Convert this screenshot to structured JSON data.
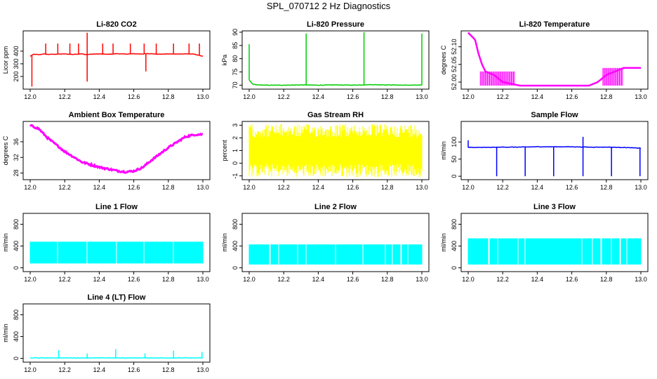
{
  "figure": {
    "title": "SPL_070712  2 Hz Diagnostics"
  },
  "colors": {
    "red": "#ff0000",
    "green": "#00cd00",
    "magenta": "#ff00ff",
    "yellow": "#ffff00",
    "blue": "#0000ff",
    "cyan": "#00ffff"
  },
  "chart_data": [
    {
      "type": "line",
      "title": "Li-820 CO2",
      "ylabel": "Licor ppm",
      "xlabel": "",
      "xlim": [
        12.0,
        13.0
      ],
      "ylim": [
        100,
        560
      ],
      "xticks": [
        "12.0",
        "12.2",
        "12.4",
        "12.6",
        "12.8",
        "13.0"
      ],
      "yticks": [
        200,
        300,
        400
      ],
      "color": "#ff0000",
      "series": [
        {
          "x": [
            12.0,
            12.02,
            12.05,
            12.08,
            12.1,
            12.15,
            12.2,
            12.25,
            12.3,
            12.32,
            12.35,
            12.4,
            12.45,
            12.5,
            12.55,
            12.6,
            12.65,
            12.7,
            12.75,
            12.8,
            12.85,
            12.9,
            12.95,
            13.0
          ],
          "values": [
            360,
            375,
            372,
            378,
            374,
            376,
            378,
            374,
            380,
            372,
            376,
            378,
            375,
            380,
            377,
            379,
            378,
            380,
            376,
            378,
            377,
            379,
            376,
            360
          ]
        }
      ],
      "spikes": [
        {
          "x": 12.01,
          "y": 120
        },
        {
          "x": 12.33,
          "y": 160
        },
        {
          "x": 12.33,
          "y": 545
        },
        {
          "x": 12.67,
          "y": 240
        },
        {
          "x": 12.09,
          "y": 460
        },
        {
          "x": 12.16,
          "y": 460
        },
        {
          "x": 12.23,
          "y": 460
        },
        {
          "x": 12.28,
          "y": 460
        },
        {
          "x": 12.42,
          "y": 460
        },
        {
          "x": 12.48,
          "y": 460
        },
        {
          "x": 12.58,
          "y": 460
        },
        {
          "x": 12.66,
          "y": 460
        },
        {
          "x": 12.73,
          "y": 460
        },
        {
          "x": 12.83,
          "y": 460
        },
        {
          "x": 12.92,
          "y": 460
        },
        {
          "x": 12.98,
          "y": 460
        }
      ]
    },
    {
      "type": "line",
      "title": "Li-820 Pressure",
      "ylabel": "kPa",
      "xlabel": "",
      "xlim": [
        12.0,
        13.0
      ],
      "ylim": [
        68.5,
        90.5
      ],
      "xticks": [
        "12.0",
        "12.2",
        "12.4",
        "12.6",
        "12.8",
        "13.0"
      ],
      "yticks": [
        70,
        75,
        80,
        85,
        90
      ],
      "color": "#00cd00",
      "series": [
        {
          "x": [
            12.0,
            12.02,
            12.05,
            12.1,
            12.2,
            12.3,
            12.4,
            12.5,
            12.6,
            12.7,
            12.8,
            12.9,
            13.0
          ],
          "values": [
            72,
            70.3,
            70.1,
            70.0,
            70.0,
            70.1,
            70.0,
            70.1,
            70.0,
            70.2,
            70.1,
            70.0,
            70.0
          ]
        }
      ],
      "spikes": [
        {
          "x": 12.0,
          "y": 85.5
        },
        {
          "x": 12.33,
          "y": 89.5
        },
        {
          "x": 12.665,
          "y": 90
        },
        {
          "x": 13.0,
          "y": 89.5
        }
      ]
    },
    {
      "type": "line",
      "title": "Li-820 Temperature",
      "ylabel": "degrees C",
      "xlabel": "",
      "xlim": [
        12.0,
        13.0
      ],
      "ylim": [
        51.98,
        52.145
      ],
      "xticks": [
        "12.0",
        "12.2",
        "12.4",
        "12.6",
        "12.8",
        "13.0"
      ],
      "yticks": [
        "52.00",
        "52.05",
        "52.10"
      ],
      "color": "#ff00ff",
      "series": [
        {
          "x": [
            12.0,
            12.02,
            12.04,
            12.05,
            12.06,
            12.08,
            12.1,
            12.15,
            12.2,
            12.3,
            12.4,
            12.5,
            12.6,
            12.7,
            12.75,
            12.8,
            12.85,
            12.9,
            13.0
          ],
          "values": [
            52.14,
            52.13,
            52.12,
            52.1,
            52.08,
            52.05,
            52.03,
            52.02,
            52.0,
            51.99,
            51.99,
            51.99,
            51.99,
            51.99,
            52.0,
            52.02,
            52.03,
            52.04,
            52.04
          ]
        }
      ]
    },
    {
      "type": "line",
      "title": "Ambient Box Temperature",
      "ylabel": "degrees C",
      "xlabel": "",
      "xlim": [
        12.0,
        13.0
      ],
      "ylim": [
        26.3,
        41.2
      ],
      "xticks": [
        "12.0",
        "12.2",
        "12.4",
        "12.6",
        "12.8",
        "13.0"
      ],
      "yticks": [
        28,
        32,
        36
      ],
      "color": "#ff00ff",
      "series": [
        {
          "x": [
            12.0,
            12.05,
            12.1,
            12.2,
            12.3,
            12.4,
            12.5,
            12.55,
            12.6,
            12.65,
            12.7,
            12.8,
            12.9,
            12.95,
            13.0
          ],
          "values": [
            40.2,
            39.3,
            37.0,
            33.5,
            30.8,
            29.5,
            28.6,
            28.3,
            28.5,
            29.4,
            31.2,
            34.5,
            37.3,
            37.8,
            37.9
          ]
        }
      ]
    },
    {
      "type": "line",
      "title": "Gas Stream RH",
      "ylabel": "percent",
      "xlabel": "",
      "xlim": [
        12.0,
        13.0
      ],
      "ylim": [
        -1.3,
        3.3
      ],
      "xticks": [
        "12.0",
        "12.2",
        "12.4",
        "12.6",
        "12.8",
        "13.0"
      ],
      "yticks": [
        -1,
        0,
        1,
        2,
        3
      ],
      "color": "#ffff00",
      "series": [
        {
          "x": [
            12.0,
            13.0
          ],
          "values": [
            1.2,
            1.2
          ]
        }
      ],
      "band": {
        "low": -1.1,
        "high": 3.1
      }
    },
    {
      "type": "line",
      "title": "Sample Flow",
      "ylabel": "ml/min",
      "xlabel": "",
      "xlim": [
        12.0,
        13.0
      ],
      "ylim": [
        -10,
        160
      ],
      "xticks": [
        "12.0",
        "12.2",
        "12.4",
        "12.6",
        "12.8",
        "13.0"
      ],
      "yticks": [
        0,
        50,
        100
      ],
      "color": "#0000ff",
      "series": [
        {
          "x": [
            12.0,
            12.1,
            12.2,
            12.3,
            12.4,
            12.5,
            12.6,
            12.7,
            12.8,
            12.9,
            13.0
          ],
          "values": [
            84,
            84,
            85,
            85,
            86,
            86,
            86,
            85,
            85,
            84,
            82
          ]
        }
      ],
      "spikes": [
        {
          "x": 12.0,
          "y": 105
        },
        {
          "x": 12.165,
          "y": 0
        },
        {
          "x": 12.33,
          "y": 0
        },
        {
          "x": 12.495,
          "y": 0
        },
        {
          "x": 12.665,
          "y": 0
        },
        {
          "x": 12.83,
          "y": 0
        },
        {
          "x": 12.995,
          "y": 0
        },
        {
          "x": 12.665,
          "y": 115
        }
      ]
    },
    {
      "type": "line",
      "title": "Line 1 Flow",
      "ylabel": "ml/min",
      "xlabel": "",
      "xlim": [
        12.0,
        13.0
      ],
      "ylim": [
        -70,
        1000
      ],
      "xticks": [
        "12.0",
        "12.2",
        "12.4",
        "12.6",
        "12.8",
        "13.0"
      ],
      "yticks": [
        0,
        400,
        800
      ],
      "color": "#00ffff",
      "series": [
        {
          "x": [
            12.0,
            13.0
          ],
          "values": [
            280,
            280
          ]
        }
      ],
      "band": {
        "low": 80,
        "high": 480
      },
      "gaps": [
        12.16,
        12.33,
        12.5,
        12.66,
        12.83
      ]
    },
    {
      "type": "line",
      "title": "Line 2 Flow",
      "ylabel": "ml/min",
      "xlabel": "",
      "xlim": [
        12.0,
        13.0
      ],
      "ylim": [
        -70,
        1000
      ],
      "xticks": [
        "12.0",
        "12.2",
        "12.4",
        "12.6",
        "12.8",
        "13.0"
      ],
      "yticks": [
        0,
        400,
        800
      ],
      "color": "#00ffff",
      "series": [
        {
          "x": [
            12.0,
            13.0
          ],
          "values": [
            250,
            250
          ]
        }
      ],
      "band": {
        "low": 60,
        "high": 430
      },
      "gaps": [
        12.12,
        12.17,
        12.28,
        12.33,
        12.5,
        12.66,
        12.79,
        12.83,
        12.88,
        12.92
      ]
    },
    {
      "type": "line",
      "title": "Line 3 Flow",
      "ylabel": "ml/min",
      "xlabel": "",
      "xlim": [
        12.0,
        13.0
      ],
      "ylim": [
        -70,
        1000
      ],
      "xticks": [
        "12.0",
        "12.2",
        "12.4",
        "12.6",
        "12.8",
        "13.0"
      ],
      "yticks": [
        0,
        400,
        800
      ],
      "color": "#00ffff",
      "series": [
        {
          "x": [
            12.0,
            13.0
          ],
          "values": [
            300,
            300
          ]
        }
      ],
      "band": {
        "low": 60,
        "high": 540
      },
      "gaps": [
        12.12,
        12.17,
        12.29,
        12.33,
        12.66,
        12.72,
        12.77,
        12.83,
        12.88,
        12.92
      ]
    },
    {
      "type": "line",
      "title": "Line 4 (LT) Flow",
      "ylabel": "ml/min",
      "xlabel": "",
      "xlim": [
        12.0,
        13.0
      ],
      "ylim": [
        -70,
        1000
      ],
      "xticks": [
        "12.0",
        "12.2",
        "12.4",
        "12.6",
        "12.8",
        "13.0"
      ],
      "yticks": [
        0,
        400,
        800
      ],
      "color": "#00ffff",
      "series": [
        {
          "x": [
            12.0,
            13.0
          ],
          "values": [
            8,
            8
          ]
        }
      ],
      "spikes": [
        {
          "x": 12.165,
          "y": 150
        },
        {
          "x": 12.33,
          "y": 90
        },
        {
          "x": 12.495,
          "y": 170
        },
        {
          "x": 12.665,
          "y": 90
        },
        {
          "x": 12.83,
          "y": 140
        },
        {
          "x": 12.995,
          "y": 120
        }
      ]
    }
  ]
}
